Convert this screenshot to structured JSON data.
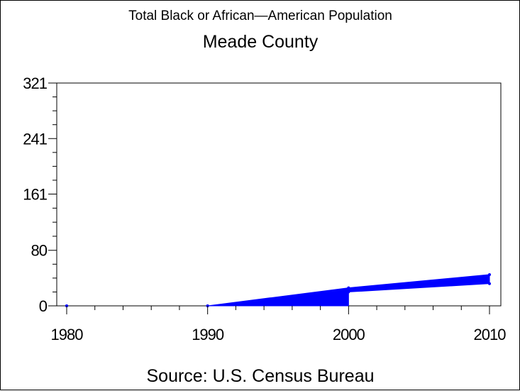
{
  "chart_data": {
    "type": "area",
    "title": "Total Black or African—American Population",
    "subtitle": "Meade County",
    "source": "Source: U.S. Census Bureau",
    "x_ticks": [
      "1980",
      "1990",
      "2000",
      "2010"
    ],
    "y_ticks": [
      "0",
      "80",
      "161",
      "241",
      "321"
    ],
    "xlim": [
      1980,
      2010
    ],
    "ylim": [
      0,
      321
    ],
    "series_color": "#0000ff",
    "series": [
      {
        "x": [
          1980,
          1990,
          2000,
          2010
        ],
        "low": [
          0,
          0,
          20,
          32
        ],
        "high": [
          0,
          0,
          26,
          45
        ]
      }
    ]
  }
}
